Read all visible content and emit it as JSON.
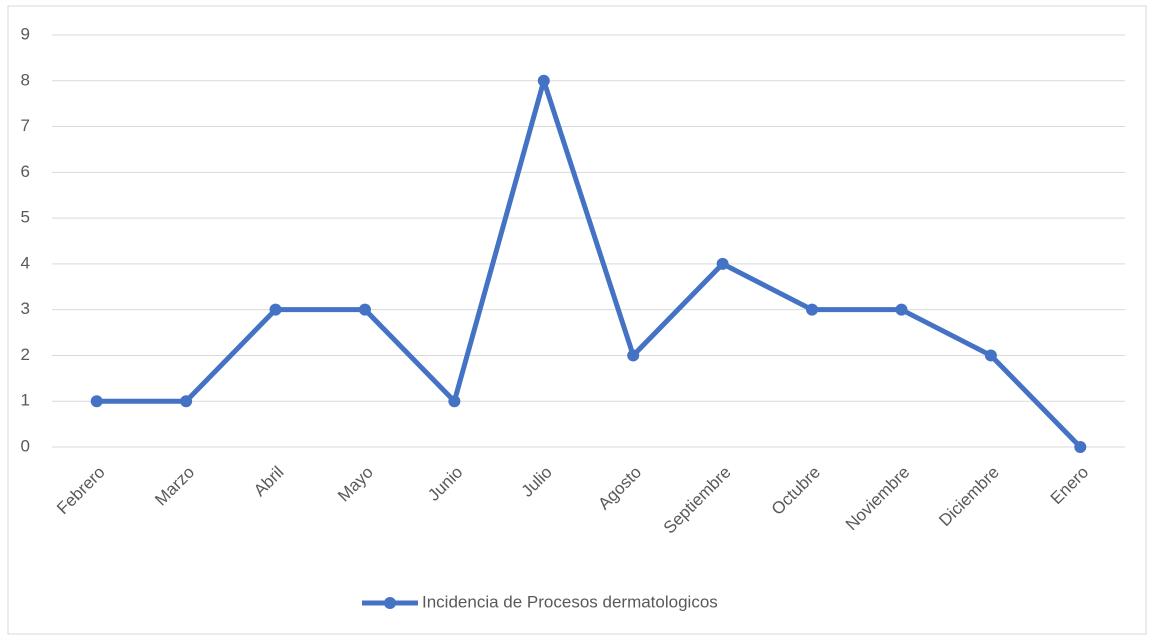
{
  "chart_data": {
    "type": "line",
    "categories": [
      "Febrero",
      "Marzo",
      "Abril",
      "Mayo",
      "Junio",
      "Julio",
      "Agosto",
      "Septiembre",
      "Octubre",
      "Noviembre",
      "Diciembre",
      "Enero"
    ],
    "series": [
      {
        "name": "Incidencia de Procesos dermatologicos",
        "color": "#4472c4",
        "values": [
          1,
          1,
          3,
          3,
          1,
          8,
          2,
          4,
          3,
          3,
          2,
          0
        ]
      }
    ],
    "ylim": [
      0,
      9
    ],
    "yticks": [
      0,
      1,
      2,
      3,
      4,
      5,
      6,
      7,
      8,
      9
    ],
    "grid": true,
    "legend": "bottom"
  }
}
